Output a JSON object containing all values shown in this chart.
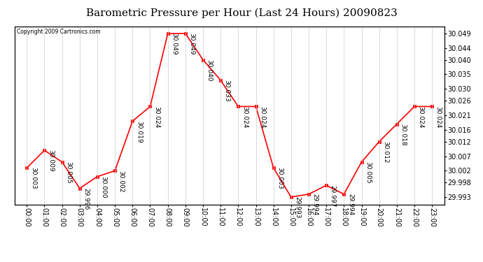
{
  "title": "Barometric Pressure per Hour (Last 24 Hours) 20090823",
  "copyright": "Copyright 2009 Cartronics.com",
  "hours": [
    "00:00",
    "01:00",
    "02:00",
    "03:00",
    "04:00",
    "05:00",
    "06:00",
    "07:00",
    "08:00",
    "09:00",
    "10:00",
    "11:00",
    "12:00",
    "13:00",
    "14:00",
    "15:00",
    "16:00",
    "17:00",
    "18:00",
    "19:00",
    "20:00",
    "21:00",
    "22:00",
    "23:00"
  ],
  "values": [
    30.003,
    30.009,
    30.005,
    29.996,
    30.0,
    30.002,
    30.019,
    30.024,
    30.049,
    30.049,
    30.04,
    30.033,
    30.024,
    30.024,
    30.003,
    29.993,
    29.994,
    29.997,
    29.994,
    30.005,
    30.012,
    30.018,
    30.024,
    30.024
  ],
  "ylim_min": 29.9905,
  "ylim_max": 30.0515,
  "yticks": [
    29.993,
    29.998,
    30.002,
    30.007,
    30.012,
    30.016,
    30.021,
    30.026,
    30.03,
    30.035,
    30.04,
    30.044,
    30.049
  ],
  "line_color": "red",
  "marker_color": "red",
  "bg_color": "white",
  "grid_color": "#cccccc",
  "title_fontsize": 11,
  "label_fontsize": 7,
  "annotation_fontsize": 6.5
}
